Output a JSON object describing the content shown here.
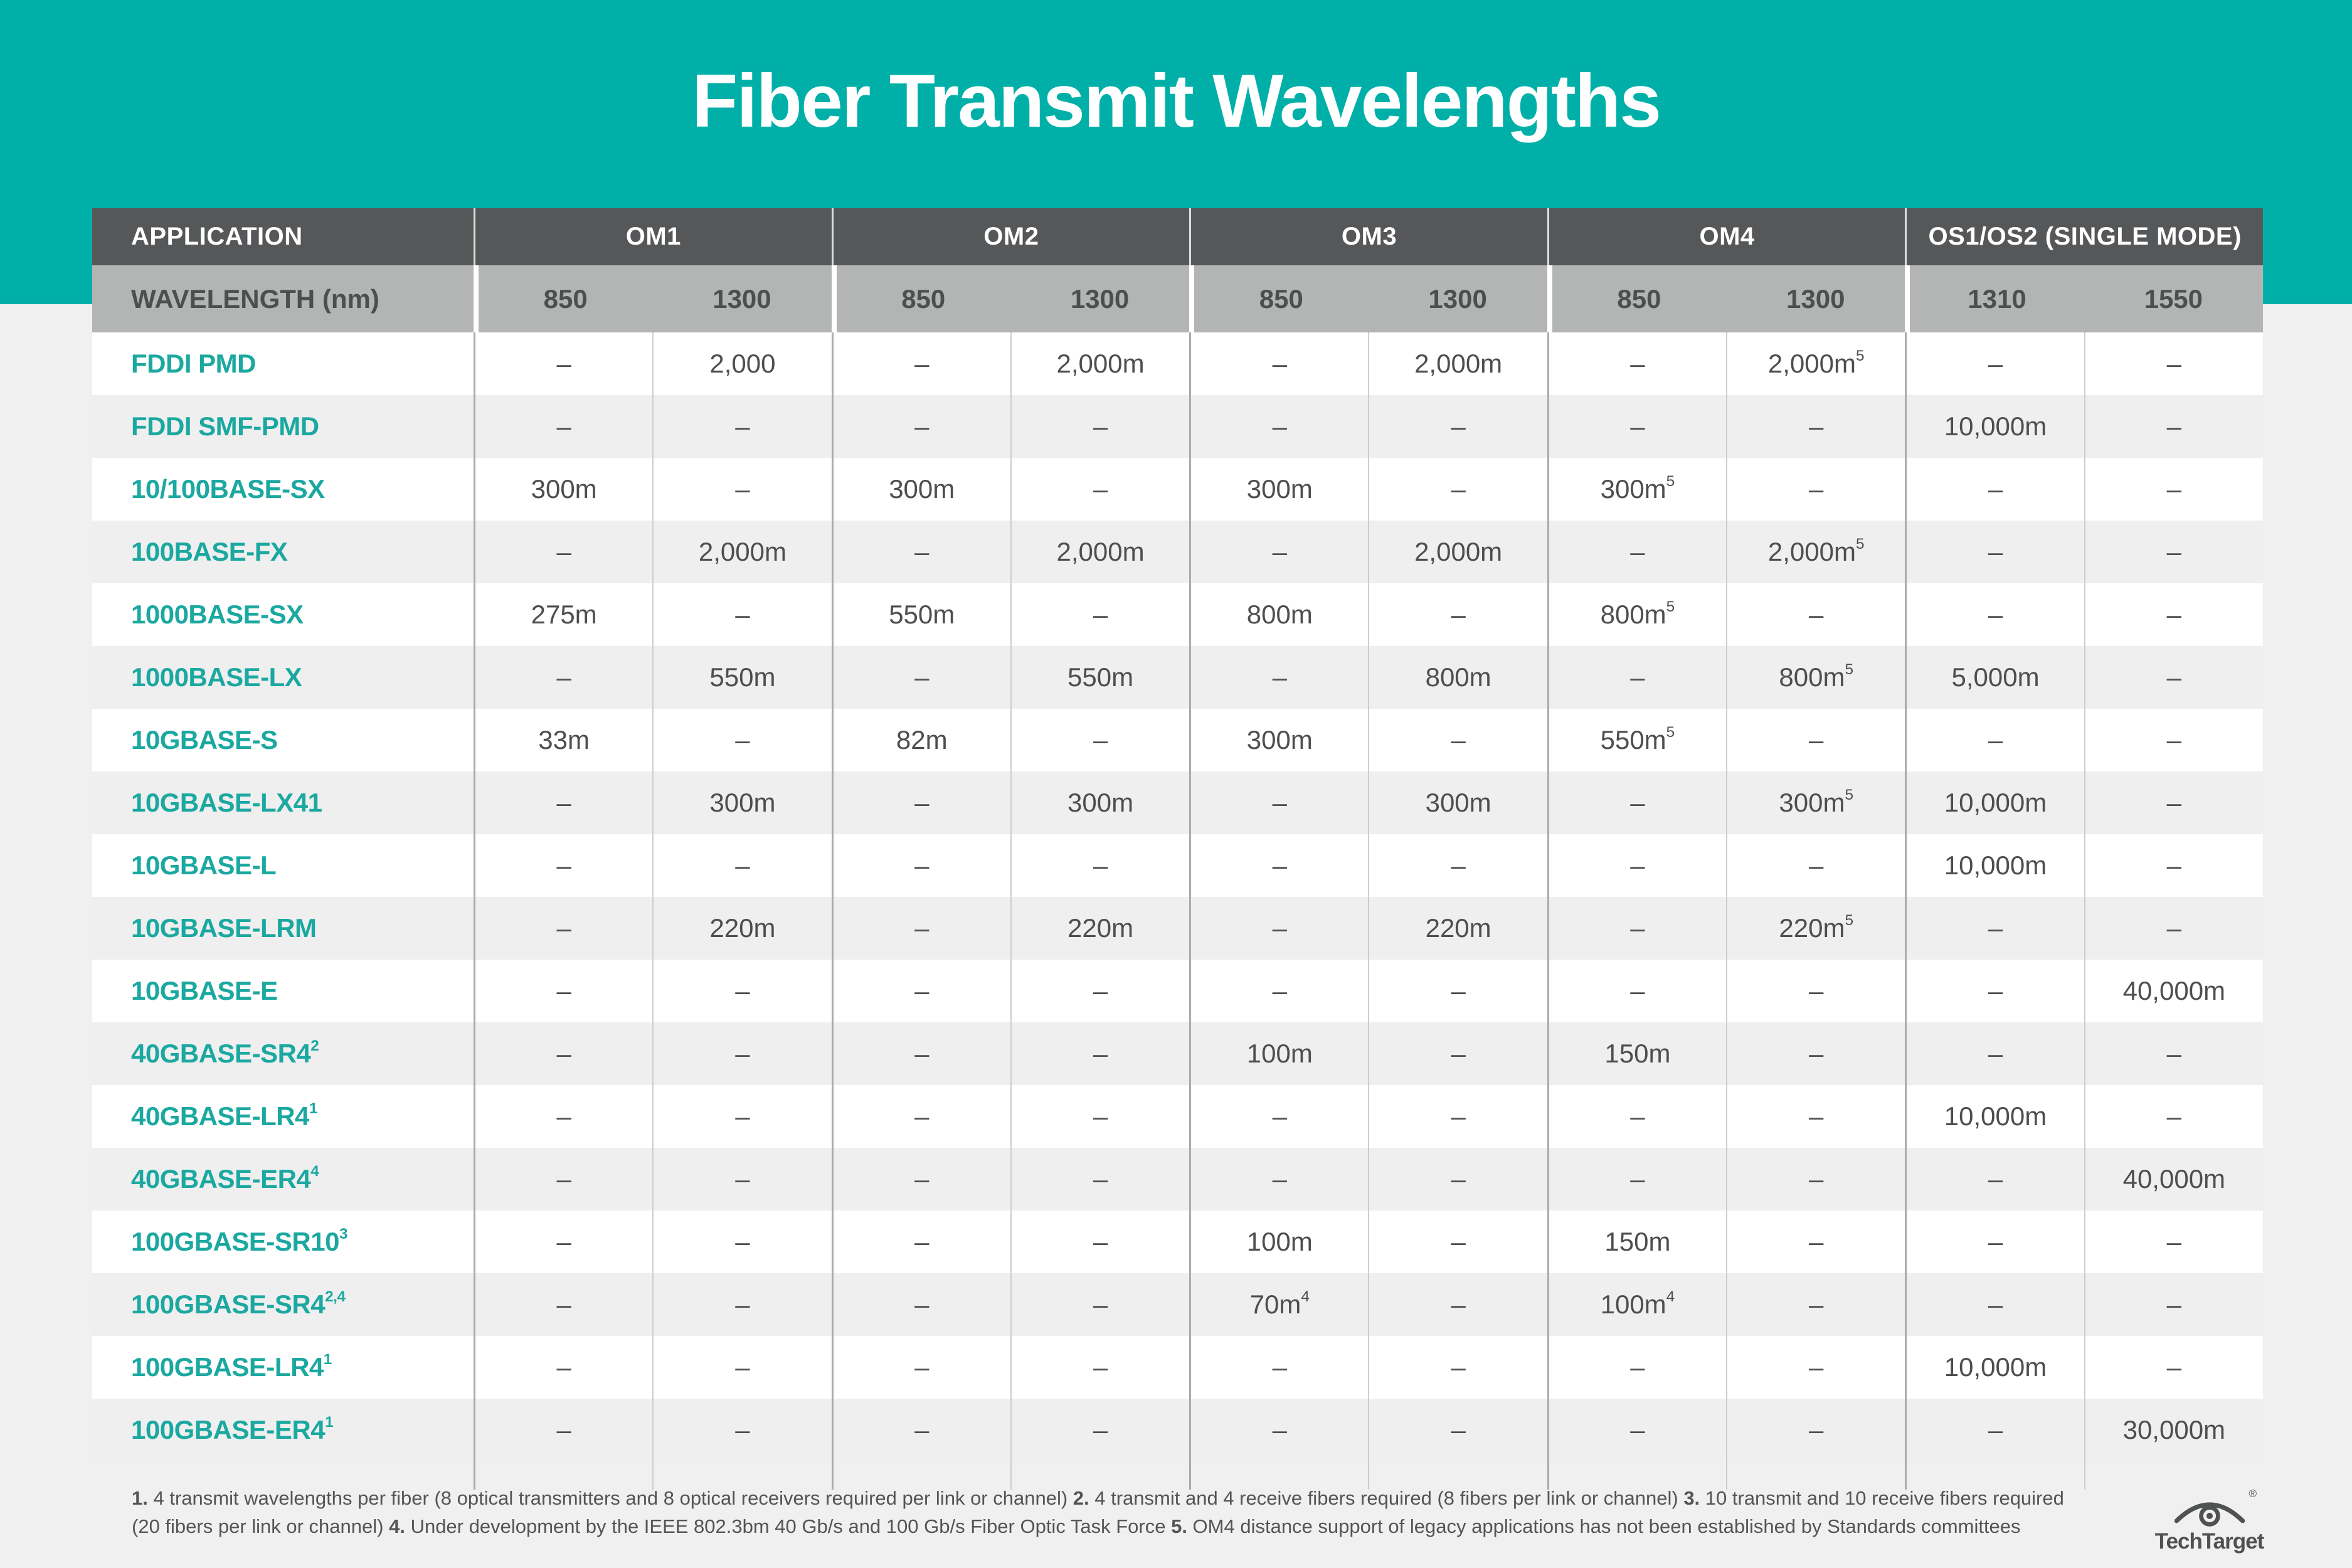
{
  "colors": {
    "teal_band": "#00b0a8",
    "app_name_teal": "#1ba8a0",
    "header_dark": "#565758",
    "subheader_gray": "#b3b5b5",
    "row_alt": "#efeff0",
    "page_bg": "#f0f0f1",
    "value_text": "#4d4e50",
    "footnote_text": "#545456",
    "logo_gray": "#4f5152"
  },
  "chart_data": {
    "type": "table",
    "title": "Fiber Transmit Wavelengths",
    "group_headers": [
      {
        "label": "APPLICATION",
        "span": 1
      },
      {
        "label": "OM1",
        "span": 2
      },
      {
        "label": "OM2",
        "span": 2
      },
      {
        "label": "OM3",
        "span": 2
      },
      {
        "label": "OM4",
        "span": 2
      },
      {
        "label": "OS1/OS2 (SINGLE MODE)",
        "span": 2
      }
    ],
    "subheader_label": "WAVELENGTH (nm)",
    "wavelengths": [
      "850",
      "1300",
      "850",
      "1300",
      "850",
      "1300",
      "850",
      "1300",
      "1310",
      "1550"
    ],
    "rows": [
      {
        "app": "FDDI PMD",
        "sup": "",
        "cells": [
          {
            "t": "–"
          },
          {
            "t": "2,000"
          },
          {
            "t": "–"
          },
          {
            "t": "2,000m"
          },
          {
            "t": "–"
          },
          {
            "t": "2,000m"
          },
          {
            "t": "–"
          },
          {
            "t": "2,000m",
            "s": "5"
          },
          {
            "t": "–"
          },
          {
            "t": "–"
          }
        ]
      },
      {
        "app": "FDDI SMF-PMD",
        "sup": "",
        "cells": [
          {
            "t": "–"
          },
          {
            "t": "–"
          },
          {
            "t": "–"
          },
          {
            "t": "–"
          },
          {
            "t": "–"
          },
          {
            "t": "–"
          },
          {
            "t": "–"
          },
          {
            "t": "–"
          },
          {
            "t": "10,000m"
          },
          {
            "t": "–"
          }
        ]
      },
      {
        "app": "10/100BASE-SX",
        "sup": "",
        "cells": [
          {
            "t": "300m"
          },
          {
            "t": "–"
          },
          {
            "t": "300m"
          },
          {
            "t": "–"
          },
          {
            "t": "300m"
          },
          {
            "t": "–"
          },
          {
            "t": "300m",
            "s": "5"
          },
          {
            "t": "–"
          },
          {
            "t": "–"
          },
          {
            "t": "–"
          }
        ]
      },
      {
        "app": "100BASE-FX",
        "sup": "",
        "cells": [
          {
            "t": "–"
          },
          {
            "t": "2,000m"
          },
          {
            "t": "–"
          },
          {
            "t": "2,000m"
          },
          {
            "t": "–"
          },
          {
            "t": "2,000m"
          },
          {
            "t": "–"
          },
          {
            "t": "2,000m",
            "s": "5"
          },
          {
            "t": "–"
          },
          {
            "t": "–"
          }
        ]
      },
      {
        "app": "1000BASE-SX",
        "sup": "",
        "cells": [
          {
            "t": "275m"
          },
          {
            "t": "–"
          },
          {
            "t": "550m"
          },
          {
            "t": "–"
          },
          {
            "t": "800m"
          },
          {
            "t": "–"
          },
          {
            "t": "800m",
            "s": "5"
          },
          {
            "t": "–"
          },
          {
            "t": "–"
          },
          {
            "t": "–"
          }
        ]
      },
      {
        "app": "1000BASE-LX",
        "sup": "",
        "cells": [
          {
            "t": "–"
          },
          {
            "t": "550m"
          },
          {
            "t": "–"
          },
          {
            "t": "550m"
          },
          {
            "t": "–"
          },
          {
            "t": "800m"
          },
          {
            "t": "–"
          },
          {
            "t": "800m",
            "s": "5"
          },
          {
            "t": "5,000m"
          },
          {
            "t": "–"
          }
        ]
      },
      {
        "app": "10GBASE-S",
        "sup": "",
        "cells": [
          {
            "t": "33m"
          },
          {
            "t": "–"
          },
          {
            "t": "82m"
          },
          {
            "t": "–"
          },
          {
            "t": "300m"
          },
          {
            "t": "–"
          },
          {
            "t": "550m",
            "s": "5"
          },
          {
            "t": "–"
          },
          {
            "t": "–"
          },
          {
            "t": "–"
          }
        ]
      },
      {
        "app": "10GBASE-LX41",
        "sup": "",
        "cells": [
          {
            "t": "–"
          },
          {
            "t": "300m"
          },
          {
            "t": "–"
          },
          {
            "t": "300m"
          },
          {
            "t": "–"
          },
          {
            "t": "300m"
          },
          {
            "t": "–"
          },
          {
            "t": "300m",
            "s": "5"
          },
          {
            "t": "10,000m"
          },
          {
            "t": "–"
          }
        ]
      },
      {
        "app": "10GBASE-L",
        "sup": "",
        "cells": [
          {
            "t": "–"
          },
          {
            "t": "–"
          },
          {
            "t": "–"
          },
          {
            "t": "–"
          },
          {
            "t": "–"
          },
          {
            "t": "–"
          },
          {
            "t": "–"
          },
          {
            "t": "–"
          },
          {
            "t": "10,000m"
          },
          {
            "t": "–"
          }
        ]
      },
      {
        "app": "10GBASE-LRM",
        "sup": "",
        "cells": [
          {
            "t": "–"
          },
          {
            "t": "220m"
          },
          {
            "t": "–"
          },
          {
            "t": "220m"
          },
          {
            "t": "–"
          },
          {
            "t": "220m"
          },
          {
            "t": "–"
          },
          {
            "t": "220m",
            "s": "5"
          },
          {
            "t": "–"
          },
          {
            "t": "–"
          }
        ]
      },
      {
        "app": "10GBASE-E",
        "sup": "",
        "cells": [
          {
            "t": "–"
          },
          {
            "t": "–"
          },
          {
            "t": "–"
          },
          {
            "t": "–"
          },
          {
            "t": "–"
          },
          {
            "t": "–"
          },
          {
            "t": "–"
          },
          {
            "t": "–"
          },
          {
            "t": "–"
          },
          {
            "t": "40,000m"
          }
        ]
      },
      {
        "app": "40GBASE-SR4",
        "sup": "2",
        "cells": [
          {
            "t": "–"
          },
          {
            "t": "–"
          },
          {
            "t": "–"
          },
          {
            "t": "–"
          },
          {
            "t": "100m"
          },
          {
            "t": "–"
          },
          {
            "t": "150m"
          },
          {
            "t": "–"
          },
          {
            "t": "–"
          },
          {
            "t": "–"
          }
        ]
      },
      {
        "app": "40GBASE-LR4",
        "sup": "1",
        "cells": [
          {
            "t": "–"
          },
          {
            "t": "–"
          },
          {
            "t": "–"
          },
          {
            "t": "–"
          },
          {
            "t": "–"
          },
          {
            "t": "–"
          },
          {
            "t": "–"
          },
          {
            "t": "–"
          },
          {
            "t": "10,000m"
          },
          {
            "t": "–"
          }
        ]
      },
      {
        "app": "40GBASE-ER4",
        "sup": "4",
        "cells": [
          {
            "t": "–"
          },
          {
            "t": "–"
          },
          {
            "t": "–"
          },
          {
            "t": "–"
          },
          {
            "t": "–"
          },
          {
            "t": "–"
          },
          {
            "t": "–"
          },
          {
            "t": "–"
          },
          {
            "t": "–"
          },
          {
            "t": "40,000m"
          }
        ]
      },
      {
        "app": "100GBASE-SR10",
        "sup": "3",
        "cells": [
          {
            "t": "–"
          },
          {
            "t": "–"
          },
          {
            "t": "–"
          },
          {
            "t": "–"
          },
          {
            "t": "100m"
          },
          {
            "t": "–"
          },
          {
            "t": "150m"
          },
          {
            "t": "–"
          },
          {
            "t": "–"
          },
          {
            "t": "–"
          }
        ]
      },
      {
        "app": "100GBASE-SR4",
        "sup": "2,4",
        "cells": [
          {
            "t": "–"
          },
          {
            "t": "–"
          },
          {
            "t": "–"
          },
          {
            "t": "–"
          },
          {
            "t": "70m",
            "s": "4"
          },
          {
            "t": "–"
          },
          {
            "t": "100m",
            "s": "4"
          },
          {
            "t": "–"
          },
          {
            "t": "–"
          },
          {
            "t": "–"
          }
        ]
      },
      {
        "app": "100GBASE-LR4",
        "sup": "1",
        "cells": [
          {
            "t": "–"
          },
          {
            "t": "–"
          },
          {
            "t": "–"
          },
          {
            "t": "–"
          },
          {
            "t": "–"
          },
          {
            "t": "–"
          },
          {
            "t": "–"
          },
          {
            "t": "–"
          },
          {
            "t": "10,000m"
          },
          {
            "t": "–"
          }
        ]
      },
      {
        "app": "100GBASE-ER4",
        "sup": "1",
        "cells": [
          {
            "t": "–"
          },
          {
            "t": "–"
          },
          {
            "t": "–"
          },
          {
            "t": "–"
          },
          {
            "t": "–"
          },
          {
            "t": "–"
          },
          {
            "t": "–"
          },
          {
            "t": "–"
          },
          {
            "t": "–"
          },
          {
            "t": "30,000m"
          }
        ]
      }
    ]
  },
  "footnotes": {
    "line1": [
      {
        "b": "1."
      },
      {
        "t": " 4 transmit wavelengths per fiber (8 optical transmitters and 8 optical receivers required per link or channel) "
      },
      {
        "b": "2."
      },
      {
        "t": " 4 transmit and 4 receive fibers required (8 fibers per link or channel) "
      },
      {
        "b": "3."
      },
      {
        "t": " 10 transmit and 10 receive fibers required"
      }
    ],
    "line2": [
      {
        "t": "(20 fibers per link or channel) "
      },
      {
        "b": "4."
      },
      {
        "t": " Under development by the IEEE 802.3bm 40 Gb/s and 100 Gb/s Fiber Optic Task Force "
      },
      {
        "b": "5."
      },
      {
        "t": " OM4 distance support of legacy applications has not been established by Standards committees"
      }
    ]
  },
  "logo": {
    "text": "TechTarget",
    "registered": "®"
  }
}
